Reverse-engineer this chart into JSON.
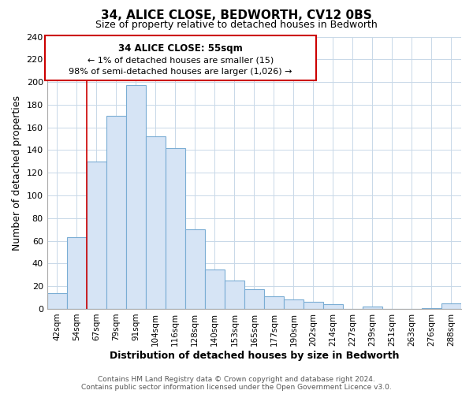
{
  "title": "34, ALICE CLOSE, BEDWORTH, CV12 0BS",
  "subtitle": "Size of property relative to detached houses in Bedworth",
  "xlabel": "Distribution of detached houses by size in Bedworth",
  "ylabel": "Number of detached properties",
  "bar_labels": [
    "42sqm",
    "54sqm",
    "67sqm",
    "79sqm",
    "91sqm",
    "104sqm",
    "116sqm",
    "128sqm",
    "140sqm",
    "153sqm",
    "165sqm",
    "177sqm",
    "190sqm",
    "202sqm",
    "214sqm",
    "227sqm",
    "239sqm",
    "251sqm",
    "263sqm",
    "276sqm",
    "288sqm"
  ],
  "bar_values": [
    14,
    63,
    130,
    170,
    197,
    152,
    142,
    70,
    35,
    25,
    17,
    11,
    8,
    6,
    4,
    0,
    2,
    0,
    0,
    1,
    5
  ],
  "bar_color": "#d6e4f5",
  "bar_edge_color": "#7aadd4",
  "vline_x": 1.5,
  "vline_color": "#cc0000",
  "ylim": [
    0,
    240
  ],
  "yticks": [
    0,
    20,
    40,
    60,
    80,
    100,
    120,
    140,
    160,
    180,
    200,
    220,
    240
  ],
  "annotation_title": "34 ALICE CLOSE: 55sqm",
  "annotation_line1": "← 1% of detached houses are smaller (15)",
  "annotation_line2": "98% of semi-detached houses are larger (1,026) →",
  "annotation_box_color": "#ffffff",
  "annotation_box_edge": "#cc0000",
  "footer_line1": "Contains HM Land Registry data © Crown copyright and database right 2024.",
  "footer_line2": "Contains public sector information licensed under the Open Government Licence v3.0.",
  "background_color": "#ffffff",
  "grid_color": "#c8d8e8"
}
